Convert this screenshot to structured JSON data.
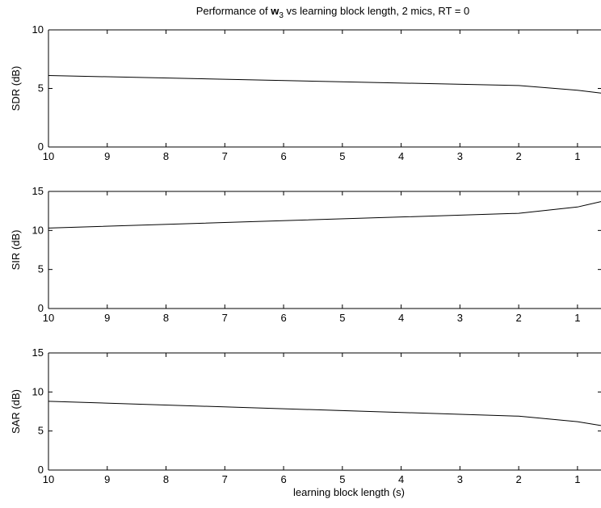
{
  "title": {
    "prefix": "Performance of ",
    "symbol": "w",
    "subscript": "3",
    "suffix": " vs learning block length, 2 mics, RT = 0"
  },
  "chart_data": [
    {
      "type": "line",
      "ylabel": "SDR (dB)",
      "xlabel": "",
      "xlim": [
        10,
        0.6
      ],
      "x_reversed": true,
      "ylim": [
        0,
        10
      ],
      "x_ticks": [
        10,
        9,
        8,
        7,
        6,
        5,
        4,
        3,
        2,
        1
      ],
      "y_ticks": [
        0,
        5,
        10
      ],
      "grid": false,
      "series": [
        {
          "x": [
            10,
            2,
            1,
            0.6
          ],
          "y": [
            6.1,
            5.25,
            4.85,
            4.6
          ]
        }
      ]
    },
    {
      "type": "line",
      "ylabel": "SIR (dB)",
      "xlabel": "",
      "xlim": [
        10,
        0.6
      ],
      "x_reversed": true,
      "ylim": [
        0,
        15
      ],
      "x_ticks": [
        10,
        9,
        8,
        7,
        6,
        5,
        4,
        3,
        2,
        1
      ],
      "y_ticks": [
        0,
        5,
        10,
        15
      ],
      "grid": false,
      "series": [
        {
          "x": [
            10,
            2,
            1,
            0.6
          ],
          "y": [
            10.3,
            12.2,
            13.0,
            13.7
          ]
        }
      ]
    },
    {
      "type": "line",
      "ylabel": "SAR (dB)",
      "xlabel": "learning block length (s)",
      "xlim": [
        10,
        0.6
      ],
      "x_reversed": true,
      "ylim": [
        0,
        15
      ],
      "x_ticks": [
        10,
        9,
        8,
        7,
        6,
        5,
        4,
        3,
        2,
        1
      ],
      "y_ticks": [
        0,
        5,
        10,
        15
      ],
      "grid": false,
      "series": [
        {
          "x": [
            10,
            2,
            1,
            0.6
          ],
          "y": [
            8.8,
            6.9,
            6.2,
            5.7
          ]
        }
      ]
    }
  ]
}
